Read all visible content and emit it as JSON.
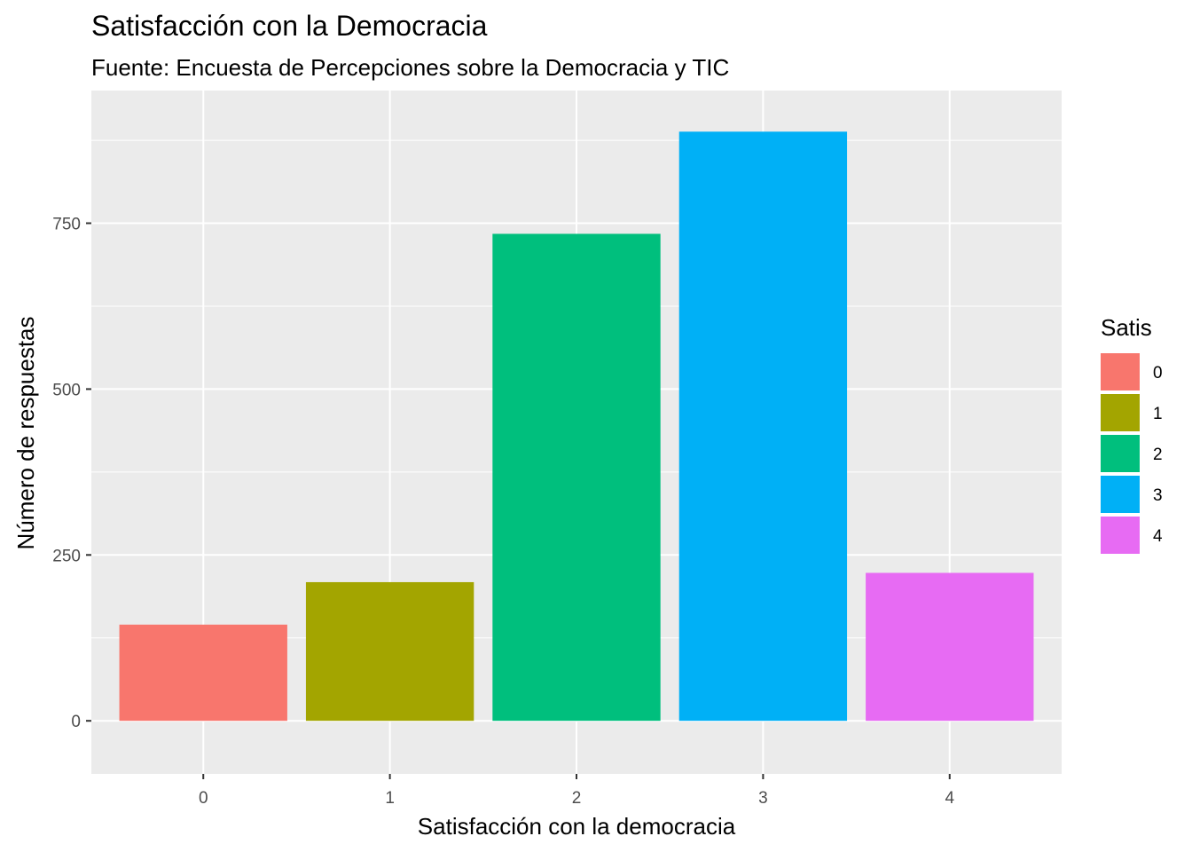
{
  "chart_data": {
    "type": "bar",
    "title": "Satisfacción con la Democracia",
    "subtitle": "Fuente: Encuesta de Percepciones sobre la Democracia y TIC",
    "xlabel": "Satisfacción con la democracia",
    "ylabel": "Número de respuestas",
    "categories": [
      "0",
      "1",
      "2",
      "3",
      "4"
    ],
    "values": [
      145,
      209,
      734,
      888,
      223
    ],
    "colors": [
      "#F8766D",
      "#A3A500",
      "#00BF7D",
      "#00B0F6",
      "#E76BF3"
    ],
    "ylim": [
      -80,
      950
    ],
    "yticks": [
      0,
      250,
      500,
      750
    ],
    "ytick_labels": [
      "0",
      "250",
      "500",
      "750"
    ],
    "grid": true,
    "panel_background": "#EBEBEB",
    "legend": {
      "title": "Satis",
      "position": "right",
      "entries": [
        "0",
        "1",
        "2",
        "3",
        "4"
      ]
    }
  }
}
